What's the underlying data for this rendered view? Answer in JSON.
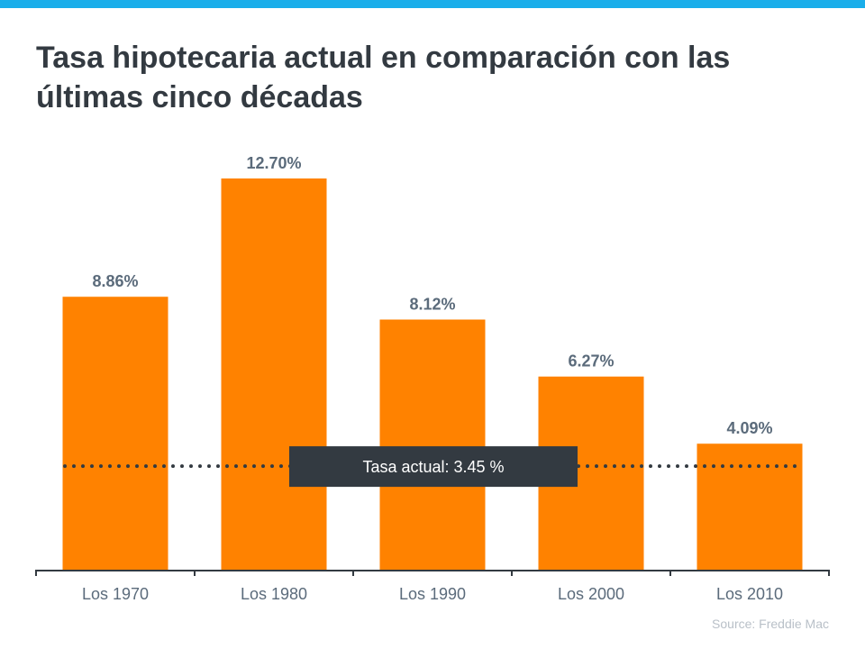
{
  "title": "Tasa hipotecaria actual en comparación con las últimas cinco décadas",
  "source": "Source: Freddie Mac",
  "colors": {
    "top_bar": "#1aaeea",
    "bar": "#ff8200",
    "title": "#333a41",
    "label": "#5b6b7b",
    "annotation_bg": "#333a41"
  },
  "chart_data": {
    "type": "bar",
    "categories": [
      "Los 1970",
      "Los 1980",
      "Los 1990",
      "Los 2000",
      "Los 2010"
    ],
    "values": [
      8.86,
      12.7,
      8.12,
      6.27,
      4.09
    ],
    "data_labels": [
      "8.86%",
      "12.70%",
      "8.12%",
      "6.27%",
      "4.09%"
    ],
    "ylim": [
      0,
      12.7
    ],
    "grid": false,
    "reference_line": {
      "value": 3.45,
      "label": "Tasa actual: 3.45 %",
      "style": "dotted"
    }
  }
}
